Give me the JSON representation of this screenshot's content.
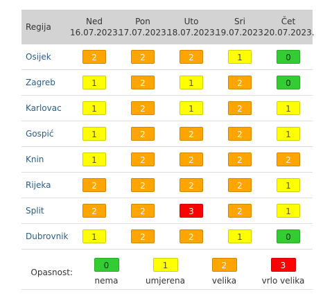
{
  "table": {
    "region_header": "Regija",
    "days": [
      {
        "name": "Ned",
        "date": "16.07.2023."
      },
      {
        "name": "Pon",
        "date": "17.07.2023."
      },
      {
        "name": "Uto",
        "date": "18.07.2023."
      },
      {
        "name": "Sri",
        "date": "19.07.2023."
      },
      {
        "name": "Čet",
        "date": "20.07.2023."
      }
    ],
    "rows": [
      {
        "region": "Osijek",
        "levels": [
          "2",
          "2",
          "2",
          "1",
          "0"
        ]
      },
      {
        "region": "Zagreb",
        "levels": [
          "1",
          "2",
          "1",
          "2",
          "0"
        ]
      },
      {
        "region": "Karlovac",
        "levels": [
          "1",
          "2",
          "1",
          "2",
          "1"
        ]
      },
      {
        "region": "Gospić",
        "levels": [
          "1",
          "2",
          "2",
          "2",
          "1"
        ]
      },
      {
        "region": "Knin",
        "levels": [
          "1",
          "2",
          "2",
          "2",
          "2"
        ]
      },
      {
        "region": "Rijeka",
        "levels": [
          "2",
          "2",
          "2",
          "2",
          "1"
        ]
      },
      {
        "region": "Split",
        "levels": [
          "2",
          "2",
          "3",
          "2",
          "1"
        ]
      },
      {
        "region": "Dubrovnik",
        "levels": [
          "1",
          "2",
          "2",
          "1",
          "0"
        ]
      }
    ]
  },
  "legend": {
    "label": "Opasnost:",
    "items": [
      {
        "value": "0",
        "text": "nema"
      },
      {
        "value": "1",
        "text": "umjerena"
      },
      {
        "value": "2",
        "text": "velika"
      },
      {
        "value": "3",
        "text": "vrlo velika"
      }
    ]
  },
  "colors": {
    "level_0": "#33cc33",
    "level_1": "#ffff00",
    "level_2": "#ffa500",
    "level_3": "#ff0000",
    "header_bg": "#d3d3d3",
    "region_text": "#2a5d8a"
  }
}
